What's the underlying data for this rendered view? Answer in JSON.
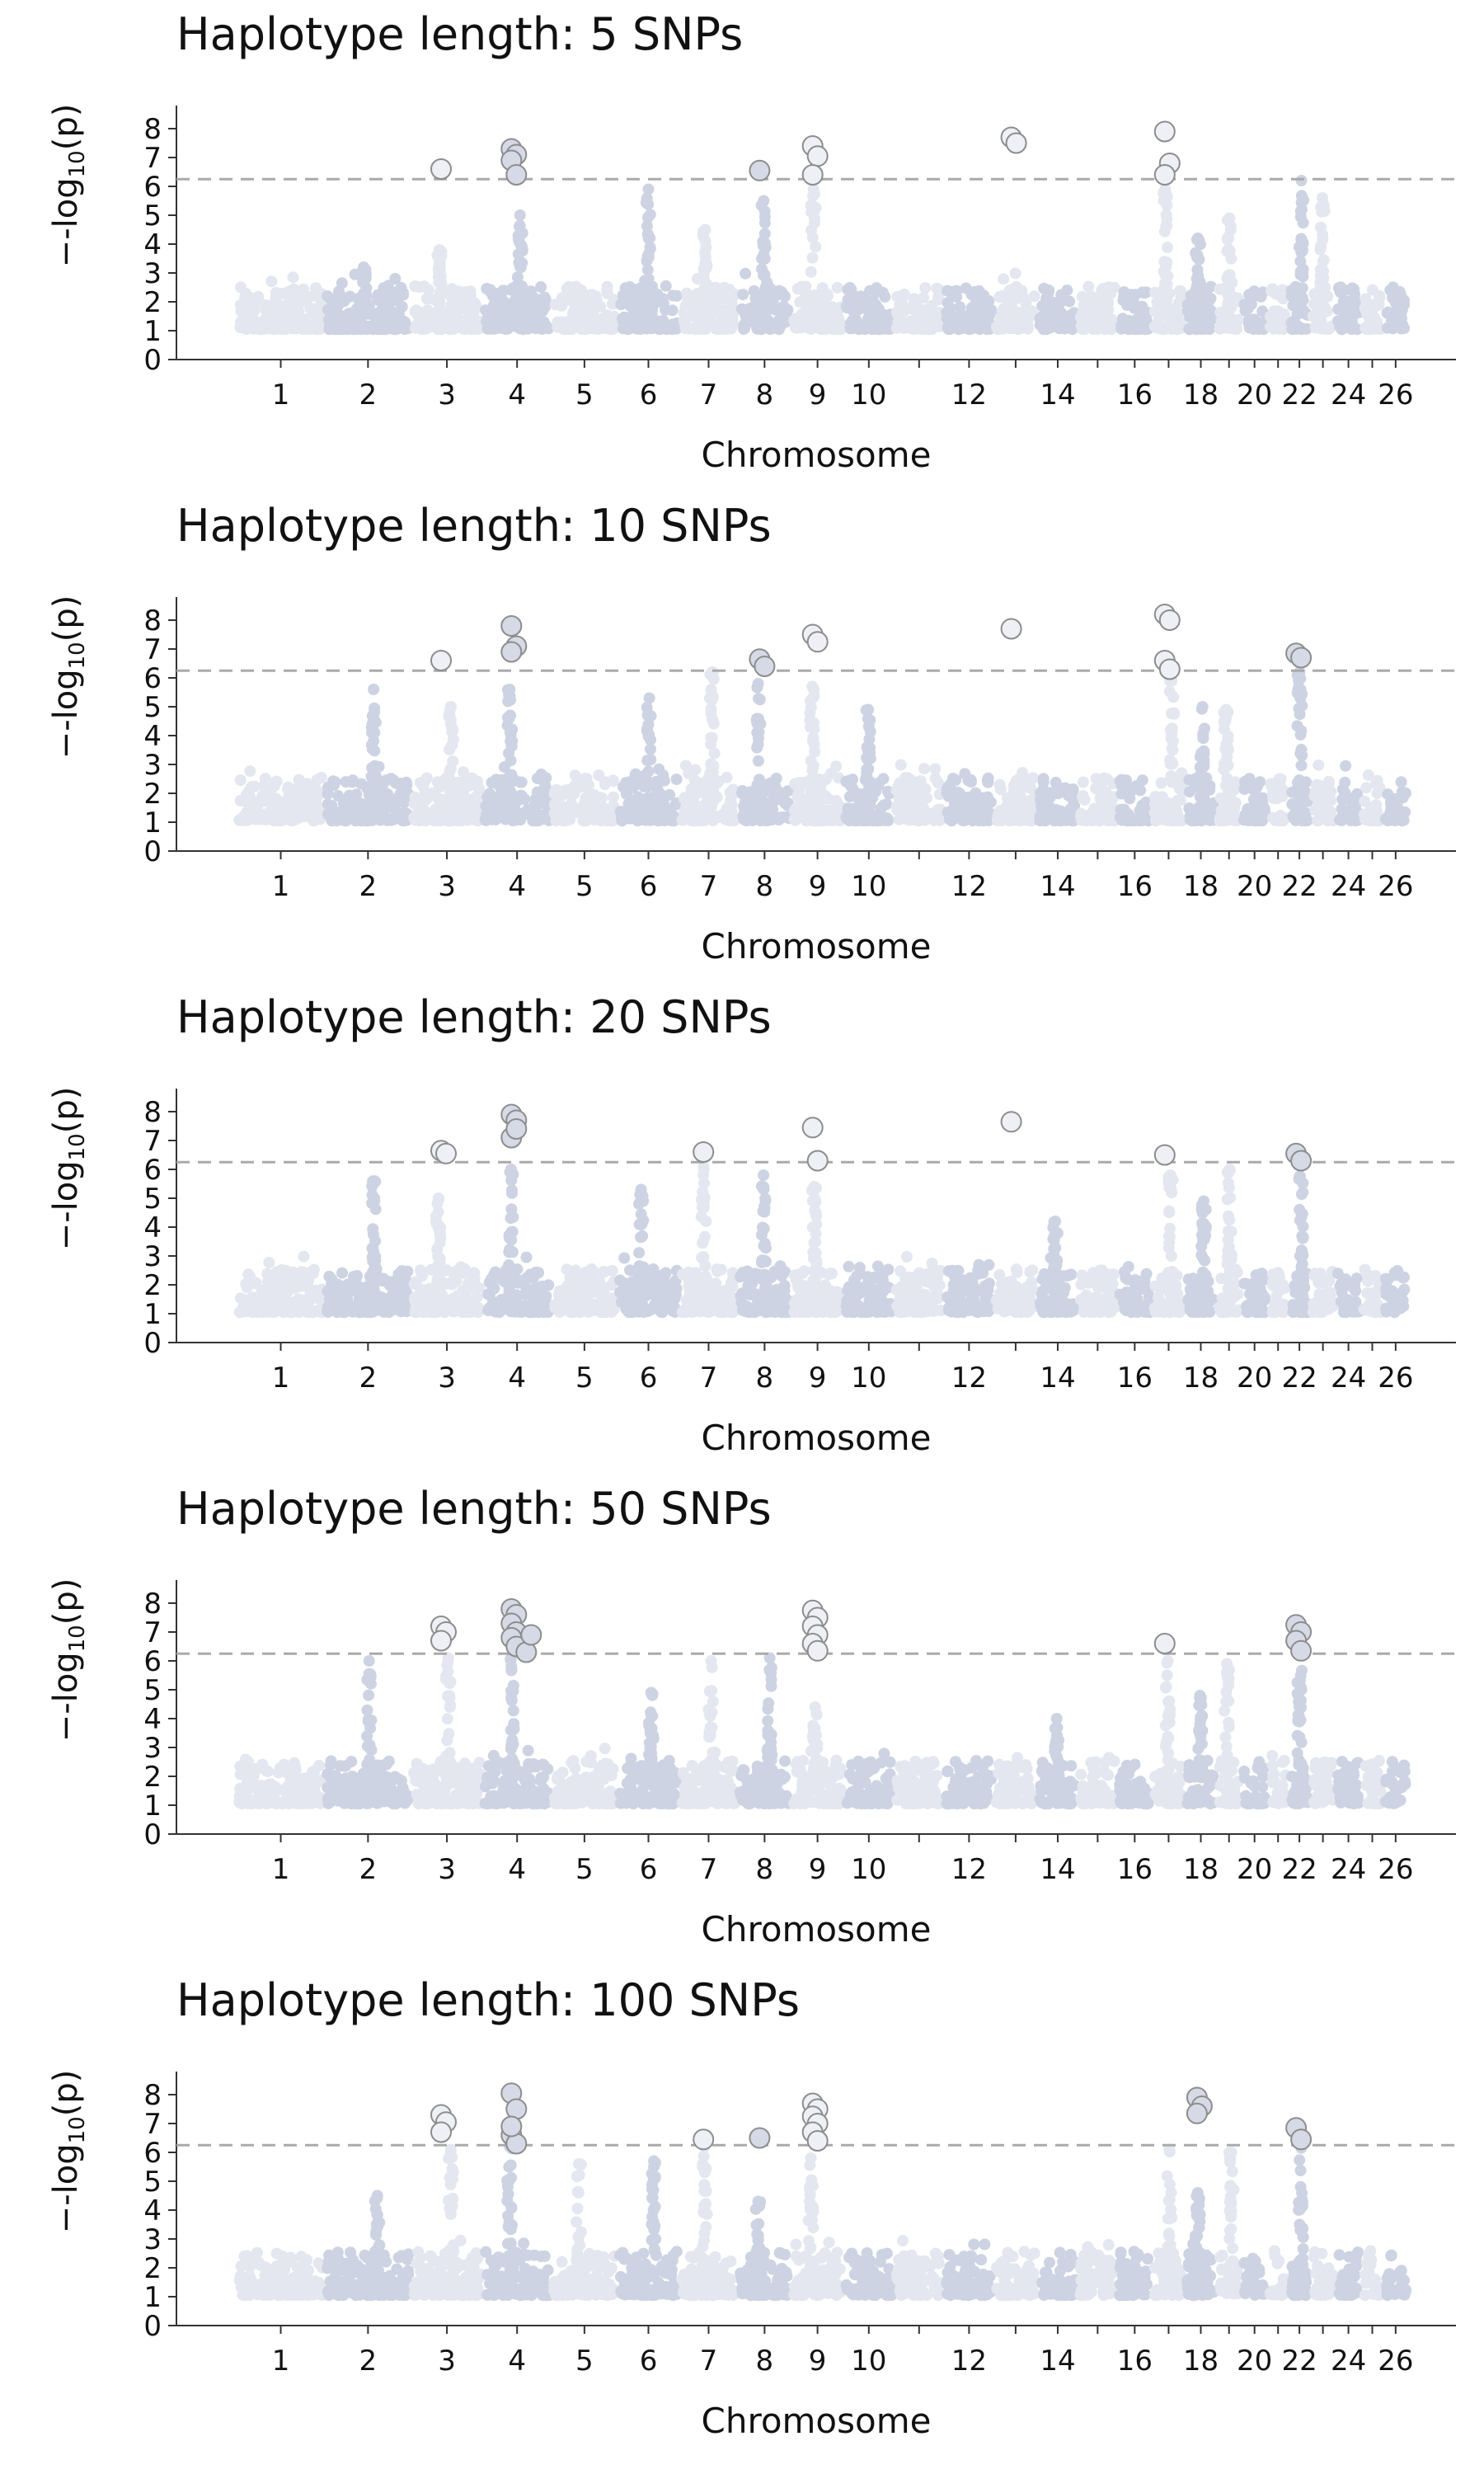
{
  "chart_data": [
    {
      "type": "scatter",
      "title": "Haplotype length: 5 SNPs",
      "xlabel": "Chromosome",
      "ylabel_base": "-log",
      "ylabel_sub": "10",
      "ylabel_tail": "(p)",
      "ylim": [
        0,
        9
      ],
      "yticks": [
        0,
        1,
        2,
        3,
        4,
        5,
        6,
        7,
        8
      ],
      "xtick_labels": [
        "1",
        "2",
        "3",
        "4",
        "5",
        "6",
        "7",
        "8",
        "9",
        "10",
        "12",
        "14",
        "16",
        "18",
        "20",
        "22",
        "24",
        "26"
      ],
      "threshold": 6.25,
      "significant_hits": [
        {
          "chromosome": 3,
          "values": [
            6.6
          ]
        },
        {
          "chromosome": 4,
          "values": [
            7.3,
            7.1,
            6.9,
            6.4
          ]
        },
        {
          "chromosome": 8,
          "values": [
            6.55
          ]
        },
        {
          "chromosome": 9,
          "values": [
            7.4,
            7.05,
            6.4
          ]
        },
        {
          "chromosome": 13,
          "values": [
            7.7,
            7.5
          ]
        },
        {
          "chromosome": 17,
          "values": [
            7.9,
            6.8,
            6.4
          ]
        }
      ],
      "peak_bg_max": {
        "2": 3.2,
        "3": 3.8,
        "4": 5.0,
        "6": 5.9,
        "7": 4.5,
        "8": 5.5,
        "9": 5.9,
        "17": 5.9,
        "18": 4.2,
        "19": 4.9,
        "22": 6.2,
        "23": 5.6
      }
    },
    {
      "type": "scatter",
      "title": "Haplotype length: 10 SNPs",
      "xlabel": "Chromosome",
      "ylabel_base": "-log",
      "ylabel_sub": "10",
      "ylabel_tail": "(p)",
      "ylim": [
        0,
        9
      ],
      "yticks": [
        0,
        1,
        2,
        3,
        4,
        5,
        6,
        7,
        8
      ],
      "xtick_labels": [
        "1",
        "2",
        "3",
        "4",
        "5",
        "6",
        "7",
        "8",
        "9",
        "10",
        "12",
        "14",
        "16",
        "18",
        "20",
        "22",
        "24",
        "26"
      ],
      "threshold": 6.25,
      "significant_hits": [
        {
          "chromosome": 3,
          "values": [
            6.6
          ]
        },
        {
          "chromosome": 4,
          "values": [
            7.8,
            7.1,
            6.9
          ]
        },
        {
          "chromosome": 8,
          "values": [
            6.65,
            6.4
          ]
        },
        {
          "chromosome": 9,
          "values": [
            7.5,
            7.25
          ]
        },
        {
          "chromosome": 13,
          "values": [
            7.7
          ]
        },
        {
          "chromosome": 17,
          "values": [
            8.2,
            8.0,
            6.6,
            6.3
          ]
        },
        {
          "chromosome": 22,
          "values": [
            6.85,
            6.7
          ]
        }
      ],
      "peak_bg_max": {
        "2": 5.6,
        "3": 5.0,
        "4": 5.6,
        "6": 5.3,
        "7": 6.2,
        "8": 5.8,
        "9": 5.7,
        "10": 4.9,
        "17": 5.9,
        "18": 5.0,
        "19": 4.9,
        "22": 6.2
      }
    },
    {
      "type": "scatter",
      "title": "Haplotype length: 20 SNPs",
      "xlabel": "Chromosome",
      "ylabel_base": "-log",
      "ylabel_sub": "10",
      "ylabel_tail": "(p)",
      "ylim": [
        0,
        9
      ],
      "yticks": [
        0,
        1,
        2,
        3,
        4,
        5,
        6,
        7,
        8
      ],
      "xtick_labels": [
        "1",
        "2",
        "3",
        "4",
        "5",
        "6",
        "7",
        "8",
        "9",
        "10",
        "12",
        "14",
        "16",
        "18",
        "20",
        "22",
        "24",
        "26"
      ],
      "threshold": 6.25,
      "significant_hits": [
        {
          "chromosome": 3,
          "values": [
            6.65,
            6.55
          ]
        },
        {
          "chromosome": 4,
          "values": [
            7.9,
            7.7,
            7.1,
            7.4
          ]
        },
        {
          "chromosome": 7,
          "values": [
            6.6
          ]
        },
        {
          "chromosome": 9,
          "values": [
            7.45,
            6.3
          ]
        },
        {
          "chromosome": 13,
          "values": [
            7.65
          ]
        },
        {
          "chromosome": 17,
          "values": [
            6.5
          ]
        },
        {
          "chromosome": 22,
          "values": [
            6.55,
            6.3
          ]
        }
      ],
      "peak_bg_max": {
        "2": 5.6,
        "3": 5.0,
        "4": 6.0,
        "6": 5.3,
        "7": 6.1,
        "8": 5.8,
        "9": 5.4,
        "14": 4.2,
        "17": 5.8,
        "18": 4.9,
        "19": 6.0,
        "22": 6.2
      }
    },
    {
      "type": "scatter",
      "title": "Haplotype length: 50 SNPs",
      "xlabel": "Chromosome",
      "ylabel_base": "-log",
      "ylabel_sub": "10",
      "ylabel_tail": "(p)",
      "ylim": [
        0,
        9
      ],
      "yticks": [
        0,
        1,
        2,
        3,
        4,
        5,
        6,
        7,
        8
      ],
      "xtick_labels": [
        "1",
        "2",
        "3",
        "4",
        "5",
        "6",
        "7",
        "8",
        "9",
        "10",
        "12",
        "14",
        "16",
        "18",
        "20",
        "22",
        "24",
        "26"
      ],
      "threshold": 6.25,
      "significant_hits": [
        {
          "chromosome": 3,
          "values": [
            7.2,
            7.0,
            6.7
          ]
        },
        {
          "chromosome": 4,
          "values": [
            7.8,
            7.6,
            7.3,
            7.0,
            6.8,
            6.5,
            6.3,
            6.9
          ]
        },
        {
          "chromosome": 9,
          "values": [
            7.75,
            7.5,
            7.2,
            6.9,
            6.6,
            6.35
          ]
        },
        {
          "chromosome": 17,
          "values": [
            6.6
          ]
        },
        {
          "chromosome": 22,
          "values": [
            7.25,
            7.0,
            6.7,
            6.35
          ]
        }
      ],
      "peak_bg_max": {
        "2": 6.0,
        "3": 6.1,
        "4": 6.2,
        "6": 4.9,
        "7": 6.0,
        "8": 6.1,
        "9": 4.4,
        "14": 4.0,
        "17": 6.0,
        "18": 4.8,
        "19": 5.9,
        "22": 6.2
      }
    },
    {
      "type": "scatter",
      "title": "Haplotype length: 100 SNPs",
      "xlabel": "Chromosome",
      "ylabel_base": "-log",
      "ylabel_sub": "10",
      "ylabel_tail": "(p)",
      "ylim": [
        0,
        9
      ],
      "yticks": [
        0,
        1,
        2,
        3,
        4,
        5,
        6,
        7,
        8
      ],
      "xtick_labels": [
        "1",
        "2",
        "3",
        "4",
        "5",
        "6",
        "7",
        "8",
        "9",
        "10",
        "12",
        "14",
        "16",
        "18",
        "20",
        "22",
        "24",
        "26"
      ],
      "threshold": 6.25,
      "significant_hits": [
        {
          "chromosome": 3,
          "values": [
            7.3,
            7.05,
            6.7
          ]
        },
        {
          "chromosome": 4,
          "values": [
            8.05,
            7.5,
            6.6,
            6.3,
            6.9
          ]
        },
        {
          "chromosome": 7,
          "values": [
            6.45
          ]
        },
        {
          "chromosome": 8,
          "values": [
            6.5
          ]
        },
        {
          "chromosome": 9,
          "values": [
            7.7,
            7.5,
            7.25,
            7.0,
            6.7,
            6.4
          ]
        },
        {
          "chromosome": 18,
          "values": [
            7.9,
            7.6,
            7.35
          ]
        },
        {
          "chromosome": 22,
          "values": [
            6.85,
            6.45
          ]
        }
      ],
      "peak_bg_max": {
        "2": 4.5,
        "3": 6.1,
        "4": 6.2,
        "5": 5.6,
        "6": 5.7,
        "7": 6.2,
        "8": 4.3,
        "9": 5.8,
        "17": 6.1,
        "18": 4.6,
        "19": 6.0,
        "22": 6.2
      }
    }
  ]
}
